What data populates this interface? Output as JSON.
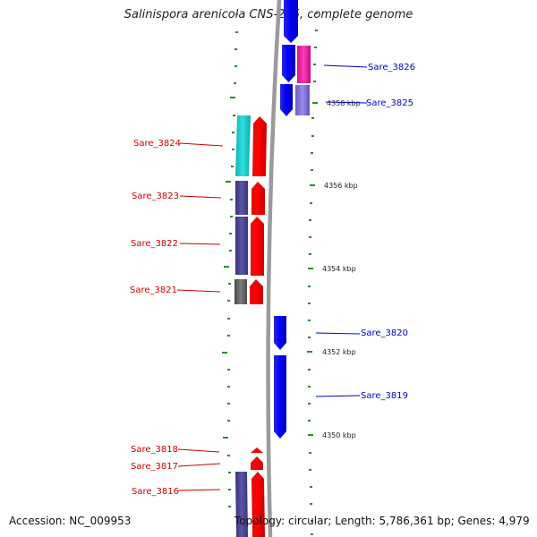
{
  "title": "Salinispora arenicola CNS-205, complete genome",
  "footer": {
    "accession": "Accession: NC_009953",
    "summary": "Topology: circular; Length: 5,786,361 bp; Genes: 4,979"
  },
  "colors": {
    "label_forward": "#0000cc",
    "label_reverse": "#cc0000",
    "backbone": "#9a9a9a",
    "tick": "#2e8b2e"
  },
  "kbp_labels": [
    {
      "kbp": 4358,
      "text": "4358 kbp"
    },
    {
      "kbp": 4356,
      "text": "4356 kbp"
    },
    {
      "kbp": 4354,
      "text": "4354 kbp"
    },
    {
      "kbp": 4352,
      "text": "4352 kbp"
    },
    {
      "kbp": 4350,
      "text": "4350 kbp"
    }
  ],
  "gene_labels": [
    {
      "name": "Sare_3826",
      "strand": "forward"
    },
    {
      "name": "Sare_3825",
      "strand": "forward"
    },
    {
      "name": "Sare_3824",
      "strand": "reverse"
    },
    {
      "name": "Sare_3823",
      "strand": "reverse"
    },
    {
      "name": "Sare_3822",
      "strand": "reverse"
    },
    {
      "name": "Sare_3821",
      "strand": "reverse"
    },
    {
      "name": "Sare_3820",
      "strand": "forward"
    },
    {
      "name": "Sare_3819",
      "strand": "forward"
    },
    {
      "name": "Sare_3818",
      "strand": "reverse"
    },
    {
      "name": "Sare_3817",
      "strand": "reverse"
    },
    {
      "name": "Sare_3816",
      "strand": "reverse"
    }
  ]
}
